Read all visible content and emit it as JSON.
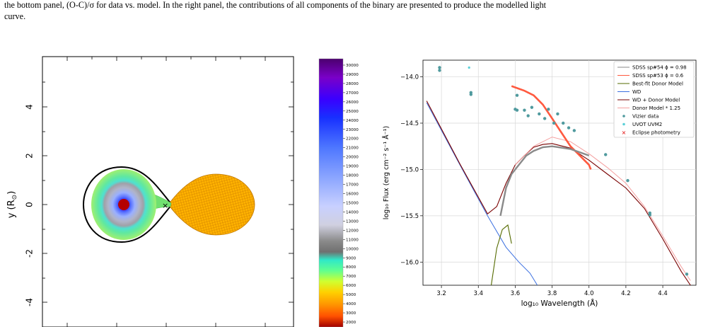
{
  "caption": {
    "line1": "the bottom panel, (O-C)/σ for data vs. model. In the right panel, the contributions of all components of the binary are presented to produce the modelled light",
    "line2": "curve."
  },
  "left_panel": {
    "ylabel": "y (R",
    "ylabel_sub": "⊙",
    "ylabel_close": ")",
    "yticks": [
      "4",
      "2",
      "0",
      "-2",
      "-4"
    ],
    "colorbar_ticks": [
      "30000",
      "29000",
      "28000",
      "27000",
      "26000",
      "25000",
      "24000",
      "23000",
      "22000",
      "21000",
      "20000",
      "19000",
      "18000",
      "17000",
      "16000",
      "15000",
      "14000",
      "13000",
      "12000",
      "11000",
      "10000",
      "9000",
      "8000",
      "7000",
      "6000",
      "5000",
      "4000",
      "3000",
      "2000"
    ]
  },
  "chart_data": {
    "type": "line",
    "xlabel": "log₁₀ Wavelength (Å)",
    "ylabel": "log₁₀ Flux (erg cm⁻² s⁻¹ Å⁻¹)",
    "xlim": [
      3.1,
      4.58
    ],
    "ylim": [
      -16.25,
      -13.82
    ],
    "xticks": [
      3.2,
      3.4,
      3.6,
      3.8,
      4.0,
      4.2,
      4.4
    ],
    "xtick_labels": [
      "3.2",
      "3.4",
      "3.6",
      "3.8",
      "4.0",
      "4.2",
      "4.4"
    ],
    "yticks": [
      -14.0,
      -14.5,
      -15.0,
      -15.5,
      -16.0
    ],
    "ytick_labels": [
      "−14.0",
      "−14.5",
      "−15.0",
      "−15.5",
      "−16.0"
    ],
    "grid": true,
    "legend_position": "top-right",
    "legend": [
      {
        "label": "SDSS sp#54 ϕ = 0.98",
        "kind": "line",
        "color": "#8a8a8a"
      },
      {
        "label": "SDSS sp#53 ϕ = 0.6",
        "kind": "line",
        "color": "#ff5a40"
      },
      {
        "label": "Best-fit Donor Model",
        "kind": "line",
        "color": "#556b00"
      },
      {
        "label": "WD",
        "kind": "line",
        "color": "#3a6fe0"
      },
      {
        "label": "WD + Donor Model",
        "kind": "line",
        "color": "#7a0000"
      },
      {
        "label": "Donor Model * 1.25",
        "kind": "line",
        "color": "#f4a0a0"
      },
      {
        "label": "Vizier data",
        "kind": "point",
        "color": "#4f9a9e"
      },
      {
        "label": "UVOT UVM2",
        "kind": "point",
        "color": "#5ad0d8"
      },
      {
        "label": "Eclipse photometry",
        "kind": "cross",
        "color": "#e00000"
      }
    ],
    "series": [
      {
        "name": "WD",
        "x": [
          3.12,
          3.3,
          3.45,
          3.55,
          3.62,
          3.68,
          3.72
        ],
        "y": [
          -14.28,
          -14.95,
          -15.5,
          -15.84,
          -16.0,
          -16.12,
          -16.25
        ]
      },
      {
        "name": "WD + Donor Model",
        "x": [
          3.12,
          3.3,
          3.45,
          3.5,
          3.55,
          3.6,
          3.65,
          3.7,
          3.75,
          3.8,
          3.9,
          4.0,
          4.1,
          4.2,
          4.3,
          4.4,
          4.5,
          4.55
        ],
        "y": [
          -14.26,
          -14.94,
          -15.48,
          -15.4,
          -15.15,
          -14.95,
          -14.85,
          -14.76,
          -14.73,
          -14.72,
          -14.77,
          -14.9,
          -15.05,
          -15.2,
          -15.42,
          -15.75,
          -16.1,
          -16.25
        ]
      },
      {
        "name": "Donor Model * 1.25",
        "x": [
          3.6,
          3.7,
          3.8,
          3.9,
          4.0,
          4.1,
          4.2,
          4.3,
          4.4,
          4.5,
          4.55
        ],
        "y": [
          -14.95,
          -14.75,
          -14.65,
          -14.7,
          -14.83,
          -14.98,
          -15.15,
          -15.4,
          -15.72,
          -16.05,
          -16.2
        ]
      },
      {
        "name": "Best-fit Donor Model",
        "x": [
          3.47,
          3.5,
          3.53,
          3.56,
          3.58
        ],
        "y": [
          -16.25,
          -15.85,
          -15.65,
          -15.6,
          -15.8
        ]
      },
      {
        "name": "SDSS sp#53 ϕ = 0.6",
        "x": [
          3.58,
          3.65,
          3.7,
          3.75,
          3.8,
          3.85,
          3.9,
          3.95,
          4.0,
          4.01
        ],
        "y": [
          -14.1,
          -14.15,
          -14.2,
          -14.3,
          -14.45,
          -14.6,
          -14.75,
          -14.85,
          -14.95,
          -15.0
        ]
      },
      {
        "name": "SDSS sp#54 ϕ = 0.98",
        "x": [
          3.52,
          3.55,
          3.58,
          3.62,
          3.66,
          3.7,
          3.75,
          3.8,
          3.9,
          4.0
        ],
        "y": [
          -15.5,
          -15.2,
          -15.05,
          -14.95,
          -14.85,
          -14.8,
          -14.76,
          -14.75,
          -14.78,
          -14.85
        ]
      }
    ],
    "vizier_points": {
      "x": [
        3.19,
        3.19,
        3.36,
        3.36,
        3.61,
        3.6,
        3.61,
        3.65,
        3.67,
        3.69,
        3.73,
        3.76,
        3.78,
        3.81,
        3.83,
        3.86,
        3.89,
        3.92,
        4.09,
        4.21,
        4.33,
        4.33,
        4.53
      ],
      "y": [
        -13.9,
        -13.93,
        -14.17,
        -14.19,
        -14.2,
        -14.35,
        -14.36,
        -14.36,
        -14.42,
        -14.33,
        -14.4,
        -14.45,
        -14.35,
        -14.5,
        -14.4,
        -14.5,
        -14.55,
        -14.58,
        -14.84,
        -15.12,
        -15.47,
        -15.49,
        -16.13
      ]
    },
    "uvot_points": {
      "x": [
        3.35
      ],
      "y": [
        -13.9
      ]
    }
  }
}
